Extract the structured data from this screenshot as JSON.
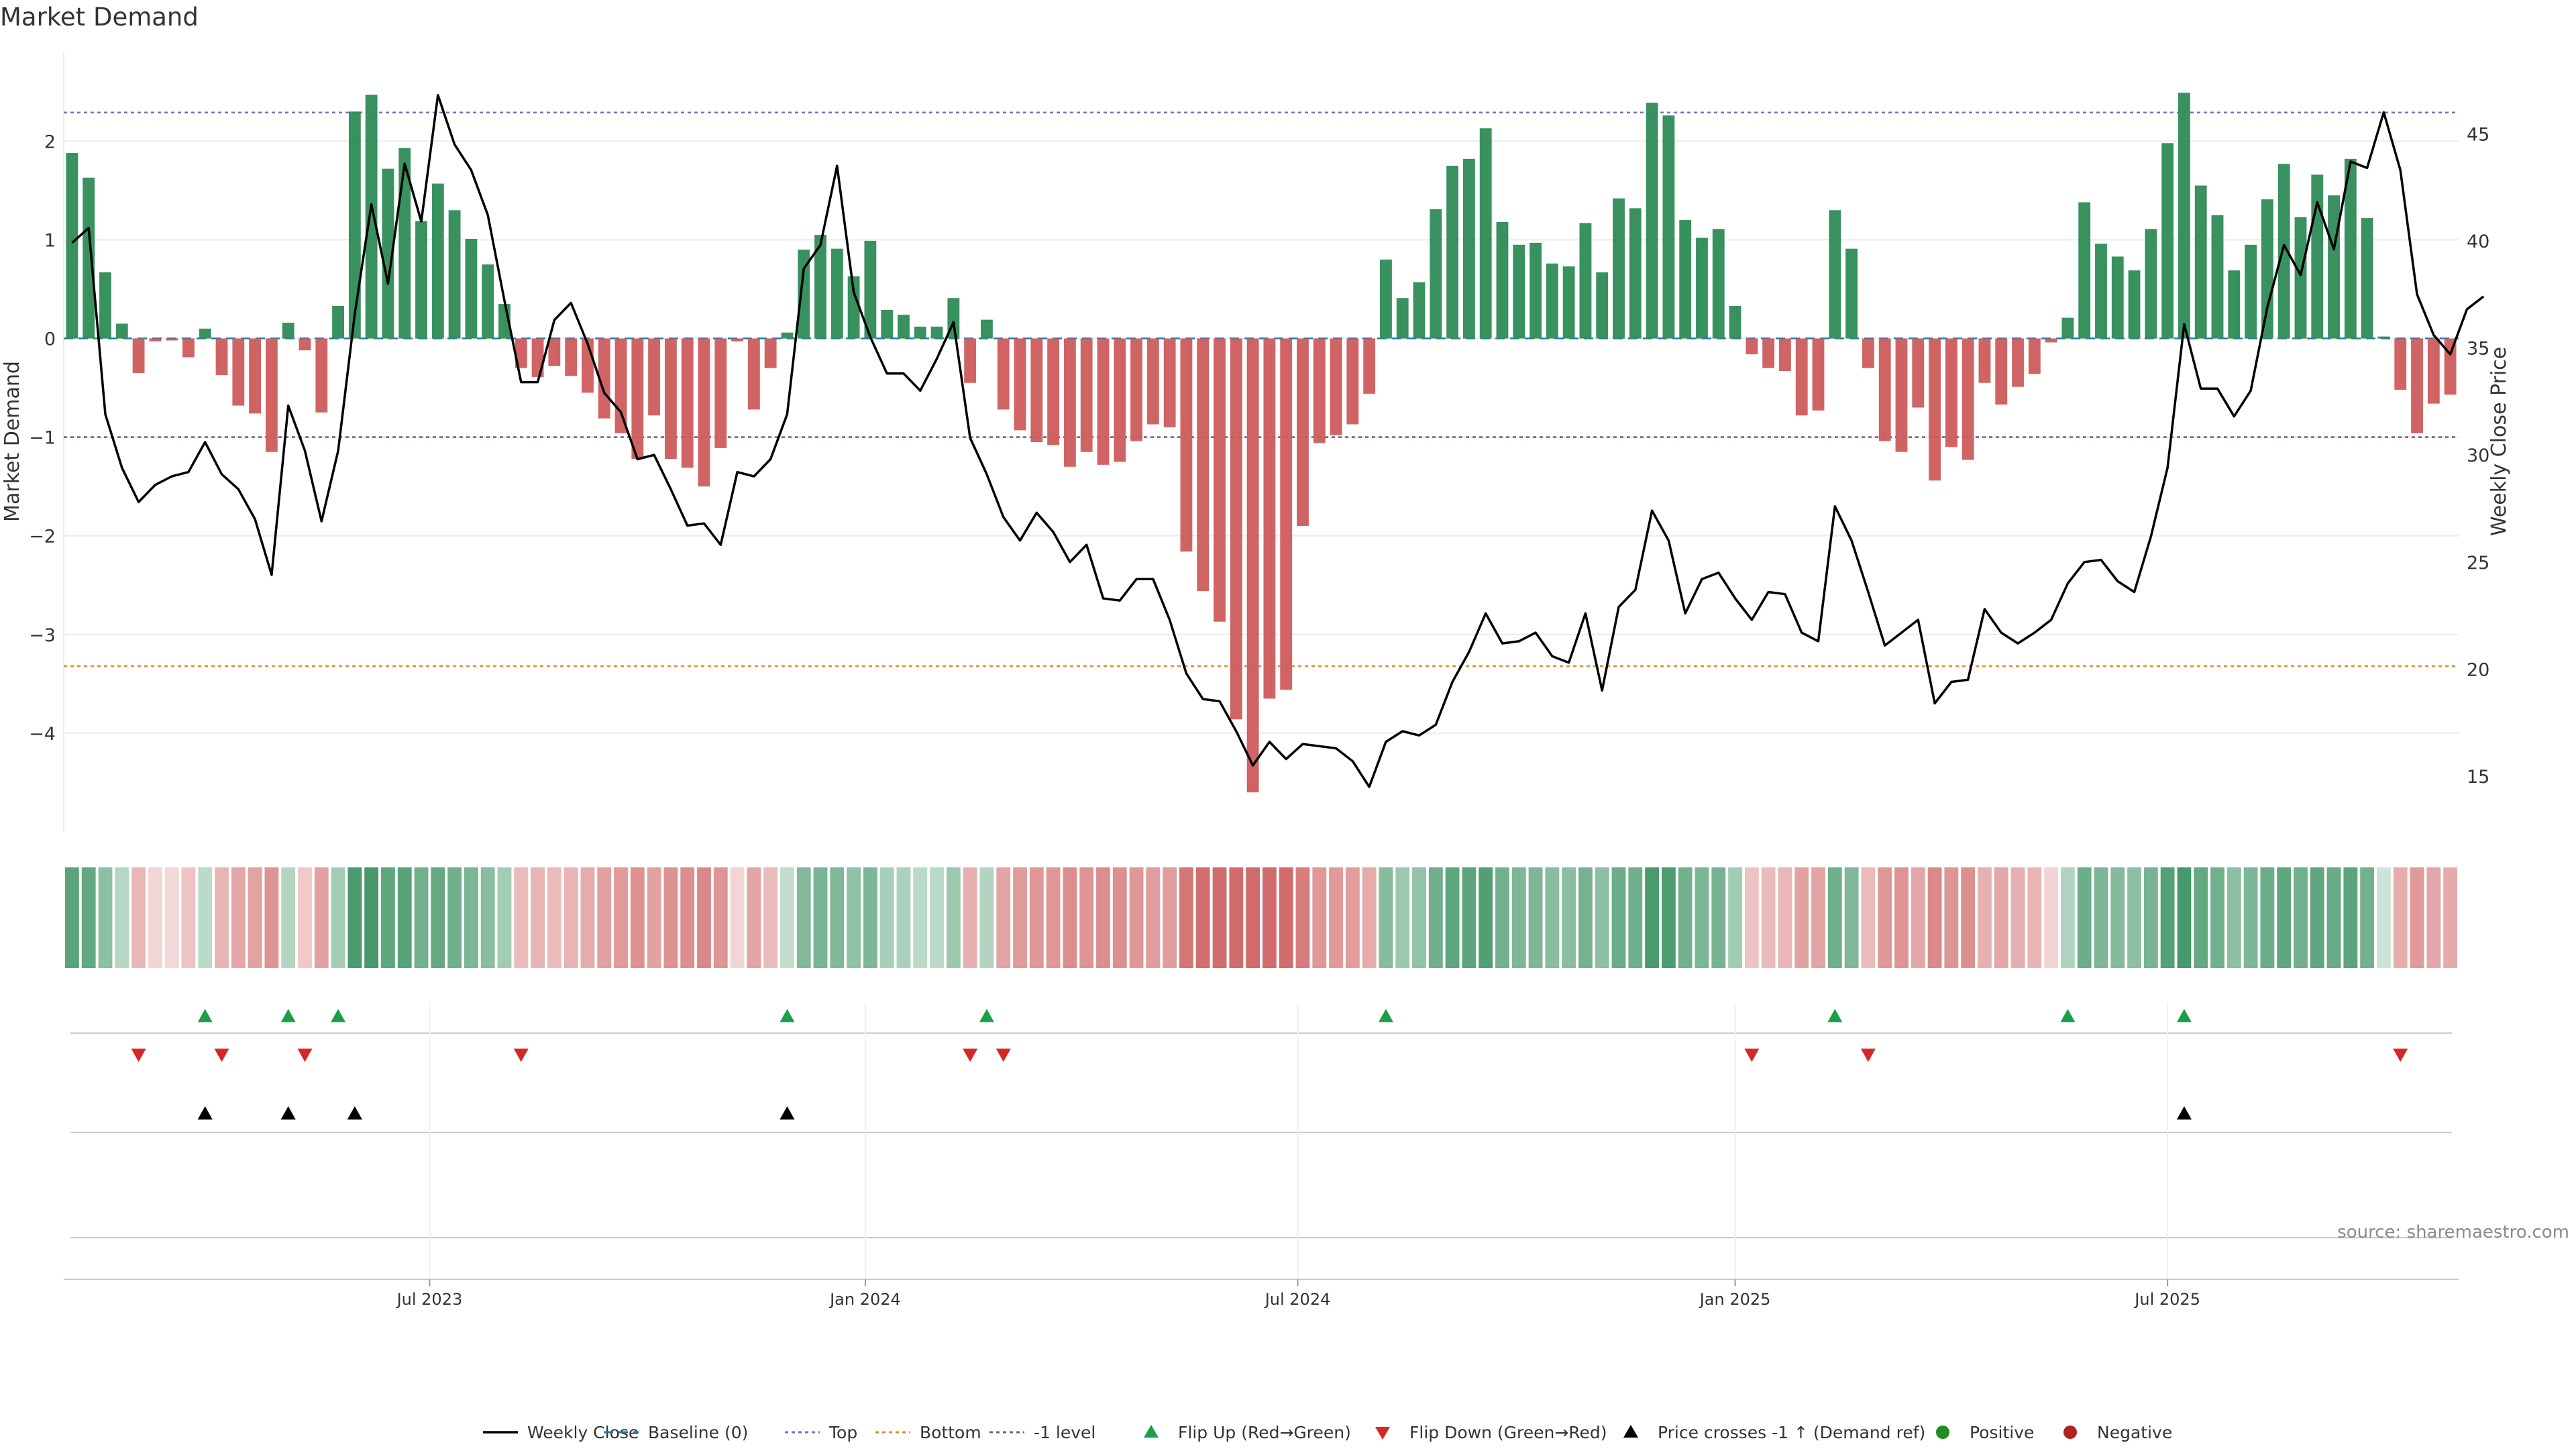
{
  "title": "Market Demand",
  "source": "source: sharemaestro.com",
  "colors": {
    "positive": "#2e8b57",
    "negative": "#cd5c5c",
    "price": "#000000",
    "top_line": "#7b6bb0",
    "bottom_line": "#e38b2c",
    "minus_one_line": "#6b5e8c",
    "baseline": "#1f77b4",
    "flip_up": "#1a9e4a",
    "flip_down": "#d62728",
    "cross": "#000000",
    "grid": "#ebebeb",
    "axis_text": "#333333"
  },
  "chart_data": {
    "type": "bar",
    "title": "Market Demand",
    "xlabel": "",
    "ylabel": "Market Demand",
    "y2label": "Weekly Close Price",
    "ylim": [
      -5.0,
      2.9
    ],
    "y2lim": [
      12.4,
      48.8
    ],
    "yticks": [
      2,
      1,
      0,
      -1,
      -2,
      -3,
      -4
    ],
    "ytick_labels": [
      "2",
      "1",
      "0",
      "−1",
      "−2",
      "−3",
      "−4"
    ],
    "y2ticks": [
      45,
      40,
      35,
      30,
      25,
      20,
      15
    ],
    "y2tick_labels": [
      "45",
      "40",
      "35",
      "30",
      "25",
      "20",
      "15"
    ],
    "n_weeks": 144,
    "first_week_index": 0,
    "x_ticks": [
      {
        "index": 21.5,
        "label": "Jul 2023"
      },
      {
        "index": 47.7,
        "label": "Jan 2024"
      },
      {
        "index": 73.7,
        "label": "Jul 2024"
      },
      {
        "index": 100.0,
        "label": "Jan 2025"
      },
      {
        "index": 126.0,
        "label": "Jul 2025"
      }
    ],
    "reference_lines": {
      "top": 2.29,
      "bottom": -3.32,
      "minus_one": -1.0,
      "baseline": 0
    },
    "demand": [
      1.88,
      1.63,
      0.67,
      0.15,
      -0.35,
      -0.03,
      -0.02,
      -0.19,
      0.1,
      -0.37,
      -0.68,
      -0.76,
      -1.15,
      0.16,
      -0.12,
      -0.75,
      0.33,
      2.3,
      2.47,
      1.72,
      1.93,
      1.19,
      1.57,
      1.3,
      1.01,
      0.75,
      0.35,
      -0.3,
      -0.39,
      -0.28,
      -0.38,
      -0.55,
      -0.81,
      -0.96,
      -1.22,
      -0.78,
      -1.22,
      -1.31,
      -1.5,
      -1.11,
      -0.03,
      -0.72,
      -0.3,
      0.06,
      0.9,
      1.05,
      0.91,
      0.63,
      0.99,
      0.29,
      0.24,
      0.12,
      0.12,
      0.41,
      -0.45,
      0.19,
      -0.72,
      -0.93,
      -1.05,
      -1.08,
      -1.3,
      -1.15,
      -1.28,
      -1.25,
      -1.04,
      -0.87,
      -0.9,
      -2.16,
      -2.56,
      -2.87,
      -3.86,
      -4.6,
      -3.65,
      -3.56,
      -1.9,
      -1.06,
      -0.98,
      -0.87,
      -0.56,
      0.8,
      0.41,
      0.57,
      1.31,
      1.75,
      1.82,
      2.13,
      1.18,
      0.95,
      0.97,
      0.76,
      0.73,
      1.17,
      0.67,
      1.42,
      1.32,
      2.39,
      2.26,
      1.2,
      1.02,
      1.11,
      0.33,
      -0.16,
      -0.3,
      -0.33,
      -0.78,
      -0.73,
      1.3,
      0.91,
      -0.3,
      -1.04,
      -1.15,
      -0.7,
      -1.44,
      -1.1,
      -1.23,
      -0.45,
      -0.67,
      -0.49,
      -0.36,
      -0.04,
      0.21,
      1.38,
      0.96,
      0.83,
      0.69,
      1.11,
      1.98,
      2.49,
      1.55,
      1.25,
      0.69,
      0.95,
      1.41,
      1.77,
      1.23,
      1.66,
      1.45,
      1.82,
      1.22,
      0.02,
      -0.52,
      -0.96,
      -0.66,
      -0.57
    ],
    "price": [
      39.9,
      40.6,
      31.9,
      29.4,
      27.8,
      28.6,
      29.0,
      29.2,
      30.6,
      29.1,
      28.4,
      27.0,
      24.4,
      32.3,
      30.2,
      26.9,
      30.2,
      36.6,
      41.7,
      38.0,
      43.6,
      40.9,
      46.8,
      44.5,
      43.3,
      41.2,
      37.2,
      33.4,
      33.4,
      36.3,
      37.1,
      35.2,
      32.9,
      32.0,
      29.8,
      30.0,
      28.4,
      26.7,
      26.8,
      25.8,
      29.2,
      29.0,
      29.8,
      31.9,
      38.7,
      39.8,
      43.5,
      37.6,
      35.5,
      33.8,
      33.8,
      33.0,
      34.5,
      36.2,
      30.8,
      29.1,
      27.1,
      26.0,
      27.3,
      26.4,
      25.0,
      25.8,
      23.3,
      23.2,
      24.2,
      24.2,
      22.3,
      19.8,
      18.6,
      18.5,
      17.1,
      15.5,
      16.6,
      15.8,
      16.5,
      16.4,
      16.3,
      15.7,
      14.5,
      16.6,
      17.1,
      16.9,
      17.4,
      19.4,
      20.8,
      22.6,
      21.2,
      21.3,
      21.7,
      20.6,
      20.3,
      22.6,
      19.0,
      22.9,
      23.7,
      27.4,
      26.0,
      22.6,
      24.2,
      24.5,
      23.3,
      22.3,
      23.6,
      23.5,
      21.7,
      21.3,
      27.6,
      26.0,
      23.6,
      21.1,
      21.7,
      22.3,
      18.4,
      19.4,
      19.5,
      22.8,
      21.7,
      21.2,
      21.7,
      22.3,
      24.0,
      25.0,
      25.1,
      24.1,
      23.6,
      26.2,
      29.4,
      36.1,
      33.1,
      33.1,
      31.8,
      33.0,
      36.9,
      39.8,
      38.4,
      41.8,
      39.6,
      43.7,
      43.4,
      46.0,
      43.3,
      37.5,
      35.6,
      34.7,
      36.8,
      37.4
    ]
  },
  "signals": {
    "flip_up": [
      8,
      13,
      16,
      43,
      55,
      79,
      106,
      120,
      127
    ],
    "flip_down": [
      4,
      9,
      14,
      27,
      54,
      56,
      101,
      108,
      140
    ],
    "price_cross_up": [
      8,
      13,
      17,
      43,
      127
    ]
  },
  "legend": {
    "items": [
      {
        "key": "weekly_close",
        "label": "Weekly Close"
      },
      {
        "key": "baseline",
        "label": "Baseline (0)"
      },
      {
        "key": "top",
        "label": "Top"
      },
      {
        "key": "bottom",
        "label": "Bottom"
      },
      {
        "key": "minus_one",
        "label": "-1 level"
      },
      {
        "key": "flip_up",
        "label": "Flip Up (Red→Green)"
      },
      {
        "key": "flip_down",
        "label": "Flip Down (Green→Red)"
      },
      {
        "key": "price_cross",
        "label": "Price crosses -1 ↑ (Demand ref)"
      },
      {
        "key": "positive",
        "label": "Positive"
      },
      {
        "key": "negative",
        "label": "Negative"
      }
    ]
  }
}
